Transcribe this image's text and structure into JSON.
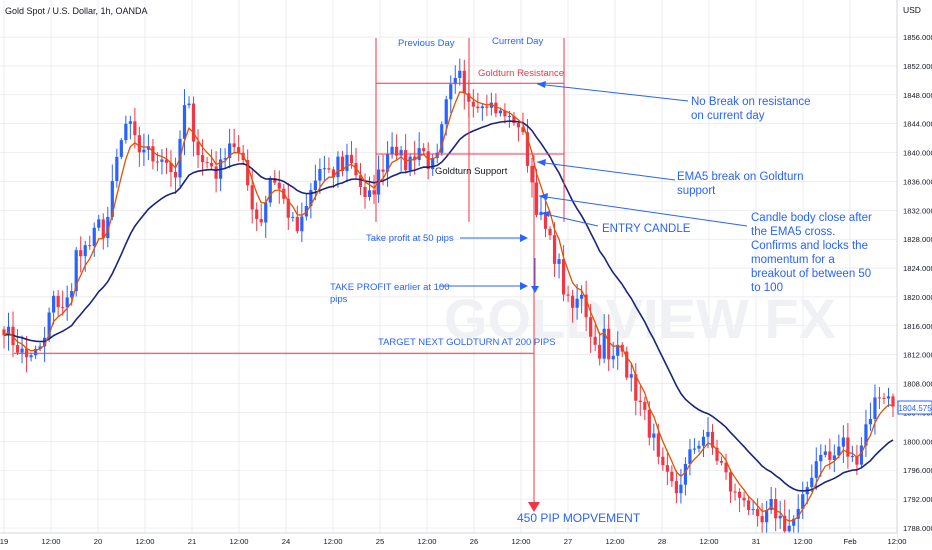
{
  "header": {
    "title": "Gold Spot / U.S. Dollar, 1h, OANDA",
    "currency": "USD"
  },
  "watermark": "GOLDVIEW FX",
  "colors": {
    "bull": "#2962ff",
    "bear": "#f23645",
    "ema_fast": "#e65100",
    "ema_slow": "#1a237e",
    "annotation_red": "#f23645",
    "annotation_blue": "#2962ff",
    "axis_text": "#131722",
    "grid": "#e0e3eb"
  },
  "price_label": "1804.575",
  "annotations": {
    "previous_day": "Previous Day",
    "current_day": "Current Day",
    "resistance": "Goldturn Resistance",
    "support": "Goldturn Support",
    "tp50": "Take profit at 50 pips",
    "tp100_l1": "TAKE PROFIT earlier at 100",
    "tp100_l2": "pips",
    "target": "TARGET NEXT GOLDTURN AT 200 PIPS",
    "movement": "450 PIP MOPVEMENT",
    "no_break_l1": "No Break on resistance",
    "no_break_l2": "on current day",
    "ema5_l1": "EMA5 break on Goldturn",
    "ema5_l2": "support",
    "entry": "ENTRY CANDLE",
    "candle_l1": "Candle body close after",
    "candle_l2": "the EMA5 cross.",
    "candle_l3": "Confirms and locks the",
    "candle_l4": "momentum for a",
    "candle_l5": "breakout of between 50",
    "candle_l6": "to 100"
  },
  "chart_data": {
    "type": "candlestick",
    "title": "Gold Spot / U.S. Dollar, 1h, OANDA",
    "ylim": [
      1787,
      1859
    ],
    "y_ticks": [
      1788,
      1792,
      1796,
      1800,
      1804,
      1808,
      1812,
      1816,
      1820,
      1824,
      1828,
      1832,
      1836,
      1840,
      1844,
      1848,
      1852,
      1856
    ],
    "x_ticks": [
      "19",
      "12:00",
      "20",
      "12:00",
      "21",
      "12:00",
      "24",
      "12:00",
      "25",
      "12:00",
      "26",
      "12:00",
      "27",
      "12:00",
      "28",
      "12:00",
      "31",
      "12:00",
      "Feb",
      "12:00"
    ],
    "levels": {
      "resistance": 1849.6,
      "support": 1839.8,
      "target": 1812.2
    },
    "path": [
      [
        1816,
        1814.5,
        1813.5,
        1812.5,
        1811.5,
        1812.5,
        1812
      ],
      [
        1813,
        1817,
        1820,
        1817,
        1821,
        1819
      ],
      [
        1826,
        1827,
        1826.5,
        1828,
        1830,
        1829
      ],
      [
        1832,
        1838,
        1841,
        1844,
        1843,
        1840,
        1841,
        1840,
        1839,
        1840,
        1839
      ],
      [
        1838,
        1835,
        1845,
        1847,
        1843,
        1840,
        1838,
        1839,
        1837,
        1838
      ],
      [
        1841,
        1842,
        1840,
        1838,
        1835,
        1832,
        1830,
        1833,
        1837,
        1836,
        1834,
        1832,
        1830,
        1829,
        1831,
        1834
      ],
      [
        1836,
        1838,
        1837,
        1836,
        1839,
        1838,
        1840,
        1838,
        1836,
        1833,
        1834,
        1836,
        1838,
        1840
      ],
      [
        1842,
        1840,
        1838,
        1839,
        1840,
        1841,
        1839,
        1838,
        1839
      ],
      [
        1844,
        1848,
        1849,
        1852,
        1849,
        1847,
        1848,
        1846,
        1847,
        1846,
        1845,
        1846,
        1844,
        1845,
        1843
      ],
      [
        1840,
        1836,
        1832,
        1830,
        1828,
        1826,
        1824,
        1820
      ],
      [
        1818,
        1819,
        1821,
        1817,
        1814,
        1812,
        1815,
        1810,
        1812,
        1815,
        1810,
        1808,
        1806,
        1804,
        1802,
        1800
      ],
      [
        1796,
        1795,
        1794,
        1793,
        1795,
        1797,
        1799,
        1800,
        1801,
        1800,
        1798,
        1797,
        1795,
        1793,
        1792,
        1793,
        1791,
        1789,
        1788,
        1789,
        1791,
        1790,
        1789,
        1788,
        1789,
        1790
      ],
      [
        1792,
        1795,
        1797,
        1799,
        1798,
        1797,
        1799,
        1800,
        1798,
        1797,
        1799,
        1802,
        1804,
        1806,
        1807,
        1806,
        1805
      ]
    ],
    "series": [
      {
        "name": "",
        "type": "ema",
        "period": 5
      },
      {
        "name": "",
        "type": "ema",
        "period": 24
      }
    ]
  }
}
